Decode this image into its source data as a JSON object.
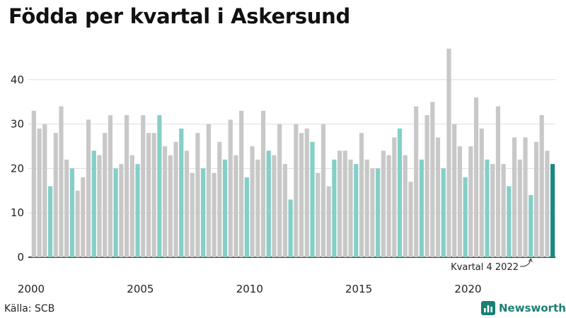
{
  "title": "Födda per kvartal i Askersund",
  "source": "Källa: SCB",
  "brand": {
    "name": "Newsworthy",
    "icon": "bar-chart-icon"
  },
  "colors": {
    "base": "#c8c8c8",
    "q4": "#84cfc8",
    "latest": "#1a8a80",
    "brand": "#1a7f74"
  },
  "chart_data": {
    "type": "bar",
    "title": "Födda per kvartal i Askersund",
    "xlabel": "",
    "ylabel": "",
    "ylim": [
      0,
      50
    ],
    "yticks": [
      0,
      10,
      20,
      30,
      40
    ],
    "xticks": [
      {
        "label": "2000",
        "year": 2000
      },
      {
        "label": "2005",
        "year": 2005
      },
      {
        "label": "2010",
        "year": 2010
      },
      {
        "label": "2015",
        "year": 2015
      },
      {
        "label": "2020",
        "year": 2020
      }
    ],
    "start_year": 2000,
    "start_quarter": 1,
    "values": [
      33,
      29,
      30,
      16,
      28,
      34,
      22,
      20,
      15,
      18,
      31,
      24,
      23,
      28,
      32,
      20,
      21,
      32,
      23,
      21,
      32,
      28,
      28,
      32,
      25,
      23,
      26,
      29,
      24,
      19,
      28,
      20,
      30,
      19,
      26,
      22,
      31,
      23,
      33,
      18,
      25,
      22,
      33,
      24,
      23,
      30,
      21,
      13,
      30,
      28,
      29,
      26,
      19,
      30,
      16,
      22,
      24,
      24,
      22,
      21,
      28,
      22,
      20,
      20,
      24,
      23,
      27,
      29,
      23,
      17,
      34,
      22,
      32,
      35,
      27,
      20,
      47,
      30,
      25,
      18,
      25,
      36,
      29,
      22,
      21,
      34,
      21,
      16,
      27,
      22,
      27,
      14,
      26,
      32,
      24,
      21
    ],
    "annotation": {
      "text": "Kvartal 4 2022",
      "target_index": 91
    }
  }
}
